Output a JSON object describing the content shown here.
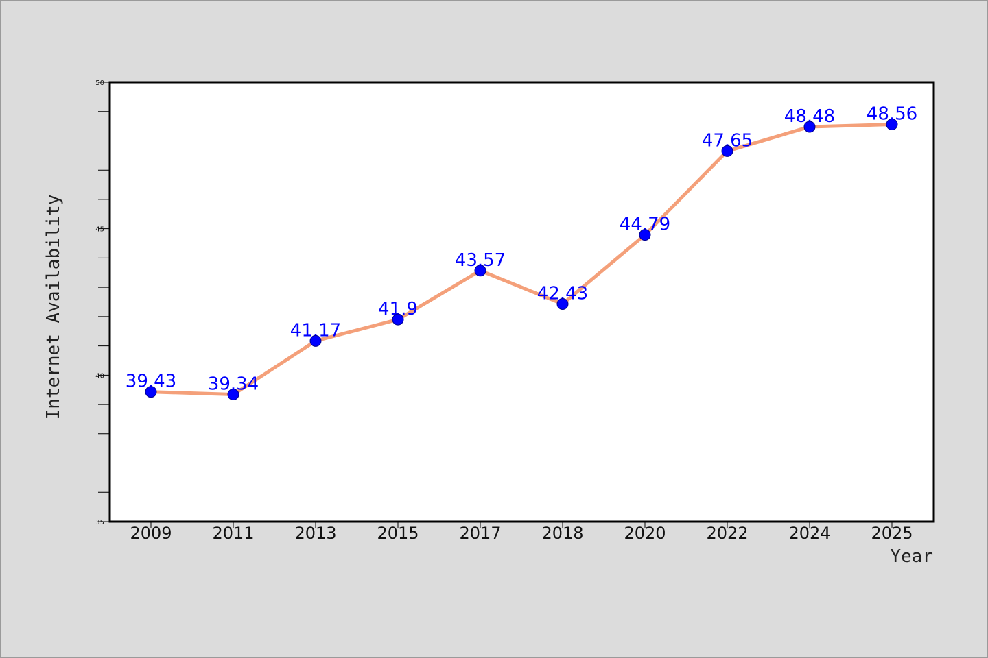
{
  "footer_text": "",
  "chart_data": {
    "type": "line",
    "title": "",
    "xlabel": "Year",
    "ylabel": "Internet Availability",
    "categories": [
      "2009",
      "2011",
      "2013",
      "2015",
      "2017",
      "2018",
      "2020",
      "2022",
      "2024",
      "2025"
    ],
    "series": [
      {
        "name": "",
        "values": [
          39.43,
          39.34,
          41.17,
          41.9,
          43.57,
          42.43,
          44.79,
          47.65,
          48.48,
          48.56
        ],
        "labels": [
          "39.43",
          "39.34",
          "41.17",
          "41.9",
          "43.57",
          "42.43",
          "44.79",
          "47.65",
          "48.48",
          "48.56"
        ]
      }
    ],
    "ylim": [
      35,
      50
    ],
    "yticks": [
      "35",
      "40",
      "45",
      "50"
    ],
    "line_color": "#f4a07a",
    "marker_color": "#0000ff",
    "label_color": "#0000ff",
    "plot_background": "#ffffff",
    "page_background": "#dcdcdc",
    "grid": false,
    "legend": "none"
  }
}
